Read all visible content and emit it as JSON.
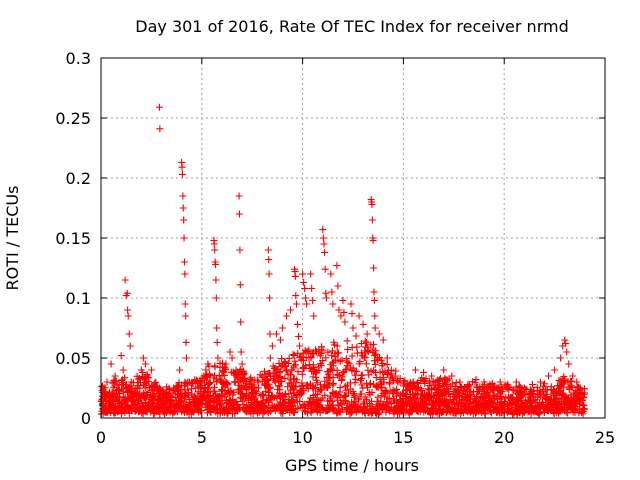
{
  "chart_data": {
    "type": "scatter",
    "title": "Day 301 of 2016, Rate Of TEC Index for receiver nrmd",
    "xlabel": "GPS time / hours",
    "ylabel": "ROTI / TECUs",
    "xlim": [
      0,
      25
    ],
    "ylim": [
      0,
      0.3
    ],
    "x_ticks": [
      0,
      5,
      10,
      15,
      20,
      25
    ],
    "x_tick_labels": [
      "0",
      "5",
      "10",
      "15",
      "20",
      "25"
    ],
    "y_ticks": [
      0,
      0.05,
      0.1,
      0.15,
      0.2,
      0.25,
      0.3
    ],
    "y_tick_labels": [
      "0",
      "0.05",
      "0.1",
      "0.15",
      "0.2",
      "0.25",
      "0.3"
    ],
    "grid": true,
    "marker": "+",
    "series": [
      {
        "name": "ROTI",
        "color": "#ff0000",
        "points": [
          [
            0.1,
            0.025
          ],
          [
            0.2,
            0.018
          ],
          [
            0.3,
            0.03
          ],
          [
            0.4,
            0.012
          ],
          [
            0.5,
            0.045
          ],
          [
            0.6,
            0.02
          ],
          [
            0.7,
            0.035
          ],
          [
            0.8,
            0.015
          ],
          [
            0.9,
            0.028
          ],
          [
            1.0,
            0.052
          ],
          [
            1.1,
            0.04
          ],
          [
            1.2,
            0.115
          ],
          [
            1.25,
            0.102
          ],
          [
            1.3,
            0.104
          ],
          [
            1.32,
            0.09
          ],
          [
            1.35,
            0.085
          ],
          [
            1.4,
            0.07
          ],
          [
            1.45,
            0.06
          ],
          [
            1.5,
            0.03
          ],
          [
            1.6,
            0.02
          ],
          [
            1.8,
            0.025
          ],
          [
            2.0,
            0.04
          ],
          [
            2.1,
            0.05
          ],
          [
            2.2,
            0.045
          ],
          [
            2.3,
            0.035
          ],
          [
            2.5,
            0.04
          ],
          [
            2.6,
            0.015
          ],
          [
            2.9,
            0.259
          ],
          [
            2.92,
            0.241
          ],
          [
            3.0,
            0.01
          ],
          [
            3.2,
            0.015
          ],
          [
            3.4,
            0.02
          ],
          [
            3.6,
            0.025
          ],
          [
            3.8,
            0.02
          ],
          [
            3.9,
            0.04
          ],
          [
            4.0,
            0.213
          ],
          [
            4.02,
            0.209
          ],
          [
            4.04,
            0.203
          ],
          [
            4.06,
            0.185
          ],
          [
            4.08,
            0.175
          ],
          [
            4.1,
            0.165
          ],
          [
            4.12,
            0.15
          ],
          [
            4.14,
            0.13
          ],
          [
            4.16,
            0.12
          ],
          [
            4.18,
            0.095
          ],
          [
            4.2,
            0.085
          ],
          [
            4.22,
            0.063
          ],
          [
            4.24,
            0.05
          ],
          [
            4.3,
            0.03
          ],
          [
            4.5,
            0.02
          ],
          [
            4.7,
            0.025
          ],
          [
            4.9,
            0.03
          ],
          [
            5.1,
            0.035
          ],
          [
            5.2,
            0.04
          ],
          [
            5.3,
            0.045
          ],
          [
            5.4,
            0.035
          ],
          [
            5.6,
            0.148
          ],
          [
            5.62,
            0.145
          ],
          [
            5.64,
            0.14
          ],
          [
            5.66,
            0.13
          ],
          [
            5.68,
            0.128
          ],
          [
            5.7,
            0.115
          ],
          [
            5.72,
            0.1
          ],
          [
            5.74,
            0.075
          ],
          [
            5.76,
            0.063
          ],
          [
            5.8,
            0.05
          ],
          [
            6.0,
            0.035
          ],
          [
            6.2,
            0.045
          ],
          [
            6.4,
            0.055
          ],
          [
            6.5,
            0.05
          ],
          [
            6.7,
            0.04
          ],
          [
            6.85,
            0.185
          ],
          [
            6.87,
            0.17
          ],
          [
            6.89,
            0.14
          ],
          [
            6.91,
            0.111
          ],
          [
            6.93,
            0.08
          ],
          [
            6.95,
            0.055
          ],
          [
            7.0,
            0.045
          ],
          [
            7.2,
            0.03
          ],
          [
            7.5,
            0.025
          ],
          [
            7.8,
            0.03
          ],
          [
            8.0,
            0.035
          ],
          [
            8.3,
            0.14
          ],
          [
            8.32,
            0.132
          ],
          [
            8.34,
            0.12
          ],
          [
            8.36,
            0.1
          ],
          [
            8.38,
            0.07
          ],
          [
            8.4,
            0.05
          ],
          [
            8.5,
            0.06
          ],
          [
            8.7,
            0.07
          ],
          [
            8.9,
            0.065
          ],
          [
            9.0,
            0.075
          ],
          [
            9.2,
            0.085
          ],
          [
            9.4,
            0.09
          ],
          [
            9.6,
            0.124
          ],
          [
            9.62,
            0.122
          ],
          [
            9.64,
            0.118
          ],
          [
            9.66,
            0.102
          ],
          [
            9.7,
            0.095
          ],
          [
            9.75,
            0.078
          ],
          [
            9.8,
            0.068
          ],
          [
            9.85,
            0.06
          ],
          [
            10.0,
            0.12
          ],
          [
            10.05,
            0.113
          ],
          [
            10.1,
            0.108
          ],
          [
            10.15,
            0.1
          ],
          [
            10.2,
            0.095
          ],
          [
            10.4,
            0.12
          ],
          [
            10.45,
            0.108
          ],
          [
            10.5,
            0.098
          ],
          [
            10.55,
            0.085
          ],
          [
            11.0,
            0.157
          ],
          [
            11.03,
            0.15
          ],
          [
            11.06,
            0.145
          ],
          [
            11.09,
            0.138
          ],
          [
            11.12,
            0.124
          ],
          [
            11.15,
            0.104
          ],
          [
            11.18,
            0.1
          ],
          [
            11.4,
            0.12
          ],
          [
            11.45,
            0.105
          ],
          [
            11.5,
            0.095
          ],
          [
            11.7,
            0.127
          ],
          [
            11.75,
            0.11
          ],
          [
            11.8,
            0.09
          ],
          [
            11.9,
            0.085
          ],
          [
            12.0,
            0.098
          ],
          [
            12.05,
            0.088
          ],
          [
            12.1,
            0.08
          ],
          [
            12.4,
            0.095
          ],
          [
            12.45,
            0.087
          ],
          [
            12.5,
            0.075
          ],
          [
            12.8,
            0.085
          ],
          [
            13.0,
            0.078
          ],
          [
            13.2,
            0.07
          ],
          [
            13.4,
            0.182
          ],
          [
            13.42,
            0.18
          ],
          [
            13.44,
            0.178
          ],
          [
            13.46,
            0.165
          ],
          [
            13.48,
            0.15
          ],
          [
            13.5,
            0.148
          ],
          [
            13.52,
            0.125
          ],
          [
            13.54,
            0.105
          ],
          [
            13.56,
            0.098
          ],
          [
            13.58,
            0.085
          ],
          [
            13.6,
            0.075
          ],
          [
            13.8,
            0.07
          ],
          [
            14.0,
            0.065
          ],
          [
            14.2,
            0.05
          ],
          [
            14.4,
            0.04
          ],
          [
            14.6,
            0.035
          ],
          [
            15.0,
            0.03
          ],
          [
            15.3,
            0.025
          ],
          [
            15.6,
            0.04
          ],
          [
            16.0,
            0.038
          ],
          [
            16.4,
            0.035
          ],
          [
            16.8,
            0.032
          ],
          [
            17.0,
            0.04
          ],
          [
            17.4,
            0.035
          ],
          [
            17.8,
            0.03
          ],
          [
            18.2,
            0.028
          ],
          [
            18.6,
            0.032
          ],
          [
            19.0,
            0.03
          ],
          [
            19.4,
            0.028
          ],
          [
            19.8,
            0.03
          ],
          [
            20.2,
            0.026
          ],
          [
            20.6,
            0.03
          ],
          [
            21.0,
            0.025
          ],
          [
            21.4,
            0.028
          ],
          [
            21.8,
            0.03
          ],
          [
            22.2,
            0.035
          ],
          [
            22.5,
            0.04
          ],
          [
            22.8,
            0.05
          ],
          [
            22.9,
            0.06
          ],
          [
            23.0,
            0.065
          ],
          [
            23.05,
            0.062
          ],
          [
            23.1,
            0.055
          ],
          [
            23.2,
            0.045
          ],
          [
            23.4,
            0.035
          ],
          [
            23.6,
            0.03
          ],
          [
            23.8,
            0.02
          ]
        ]
      }
    ],
    "dense_band": {
      "note": "Dense background of ROTI values between 0.005 and the upper envelope across 0-24 h",
      "x_range": [
        0.0,
        24.0
      ],
      "y_floor": 0.005,
      "envelope": [
        [
          0.0,
          0.028
        ],
        [
          0.5,
          0.03
        ],
        [
          1.0,
          0.035
        ],
        [
          1.5,
          0.03
        ],
        [
          2.0,
          0.04
        ],
        [
          2.5,
          0.035
        ],
        [
          3.0,
          0.025
        ],
        [
          3.5,
          0.025
        ],
        [
          4.0,
          0.03
        ],
        [
          4.5,
          0.032
        ],
        [
          5.0,
          0.035
        ],
        [
          5.5,
          0.045
        ],
        [
          6.0,
          0.045
        ],
        [
          6.5,
          0.04
        ],
        [
          7.0,
          0.04
        ],
        [
          7.5,
          0.035
        ],
        [
          8.0,
          0.04
        ],
        [
          8.5,
          0.045
        ],
        [
          9.0,
          0.05
        ],
        [
          9.5,
          0.055
        ],
        [
          10.0,
          0.06
        ],
        [
          10.5,
          0.058
        ],
        [
          11.0,
          0.06
        ],
        [
          11.5,
          0.062
        ],
        [
          12.0,
          0.065
        ],
        [
          12.5,
          0.068
        ],
        [
          13.0,
          0.065
        ],
        [
          13.5,
          0.062
        ],
        [
          14.0,
          0.05
        ],
        [
          14.5,
          0.04
        ],
        [
          15.0,
          0.032
        ],
        [
          15.5,
          0.03
        ],
        [
          16.0,
          0.035
        ],
        [
          16.5,
          0.03
        ],
        [
          17.0,
          0.035
        ],
        [
          17.5,
          0.03
        ],
        [
          18.0,
          0.028
        ],
        [
          18.5,
          0.03
        ],
        [
          19.0,
          0.028
        ],
        [
          19.5,
          0.028
        ],
        [
          20.0,
          0.027
        ],
        [
          20.5,
          0.028
        ],
        [
          21.0,
          0.025
        ],
        [
          21.5,
          0.025
        ],
        [
          22.0,
          0.028
        ],
        [
          22.5,
          0.03
        ],
        [
          23.0,
          0.035
        ],
        [
          23.5,
          0.03
        ],
        [
          24.0,
          0.025
        ]
      ]
    }
  }
}
